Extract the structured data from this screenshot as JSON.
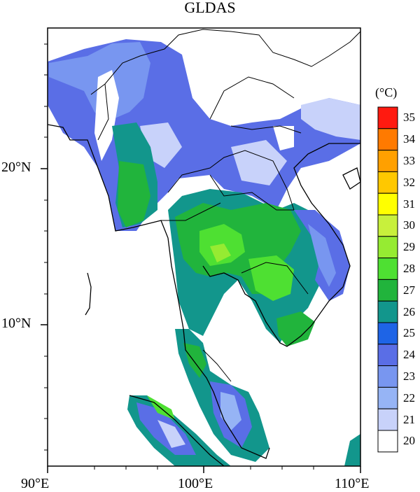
{
  "title": "GLDAS",
  "axes": {
    "x_ticks": [
      "90°E",
      "100°E",
      "110°E"
    ],
    "y_ticks": [
      "20°N",
      "10°N"
    ]
  },
  "colorbar": {
    "unit": "(°C)",
    "levels": [
      "35",
      "34",
      "33",
      "32",
      "31",
      "30",
      "29",
      "28",
      "27",
      "26",
      "25",
      "24",
      "23",
      "22",
      "21",
      "20"
    ],
    "colors": [
      "#ff1a10",
      "#ff7a00",
      "#ffa000",
      "#ffc800",
      "#ffff00",
      "#c8f03c",
      "#96eb32",
      "#4ee032",
      "#21b43c",
      "#12968c",
      "#1e64e6",
      "#5a6ee6",
      "#7896f0",
      "#96b4f5",
      "#c8d2fa",
      "#ffffff"
    ]
  }
}
